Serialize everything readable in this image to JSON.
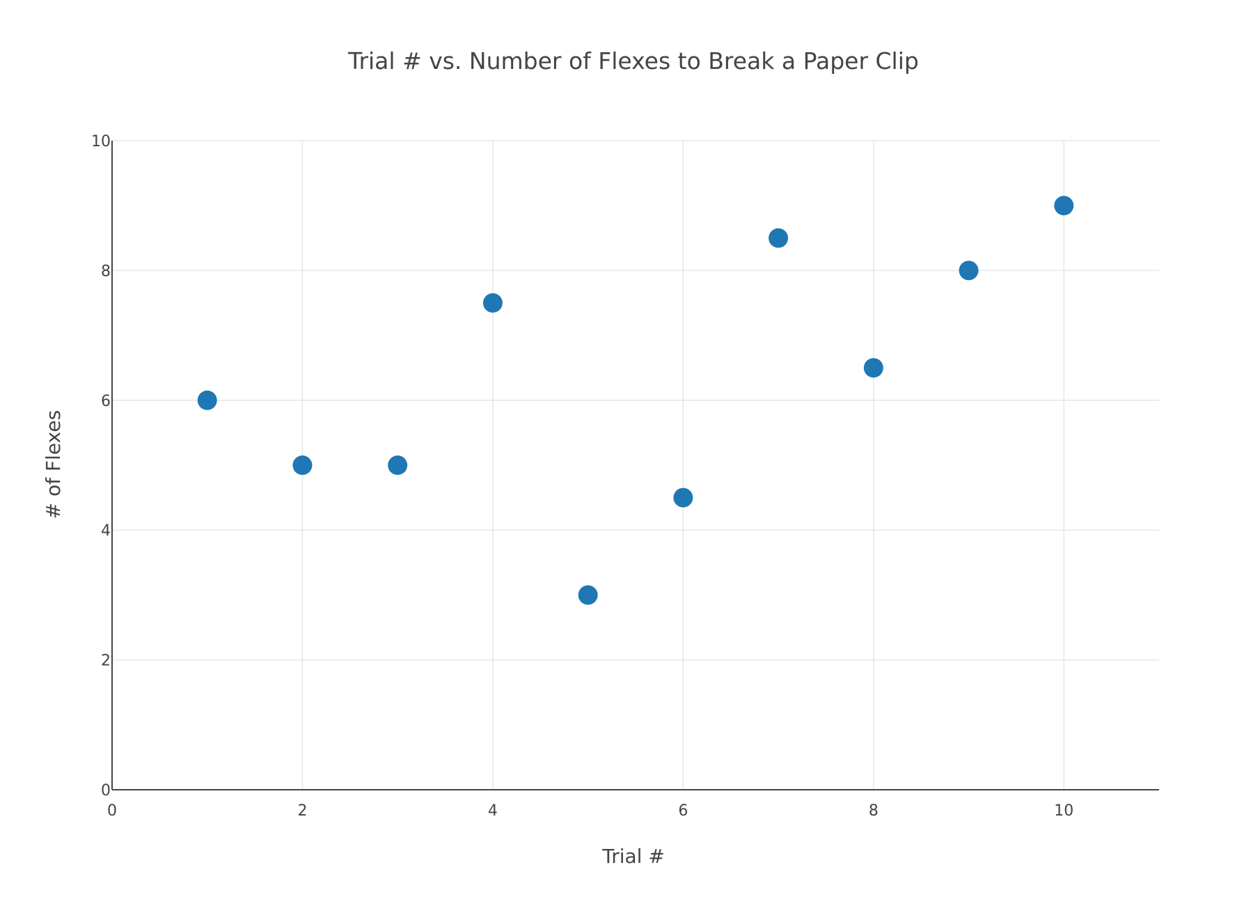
{
  "chart_data": {
    "type": "scatter",
    "title": "Trial # vs. Number of Flexes to Break a Paper Clip",
    "xlabel": "Trial #",
    "ylabel": "# of Flexes",
    "xlim": [
      0,
      11
    ],
    "ylim": [
      0,
      10
    ],
    "xticks": [
      0,
      2,
      4,
      6,
      8,
      10
    ],
    "yticks": [
      0,
      2,
      4,
      6,
      8,
      10
    ],
    "grid": true,
    "legend": "none",
    "marker_color": "#1f77b4",
    "grid_color": "#e6e6e6",
    "axis_color": "#444444",
    "series": [
      {
        "x": [
          1,
          2,
          3,
          4,
          5,
          6,
          7,
          8,
          9,
          10
        ],
        "y": [
          6,
          5,
          5,
          7.5,
          3,
          4.5,
          8.5,
          6.5,
          8,
          9
        ]
      }
    ]
  }
}
